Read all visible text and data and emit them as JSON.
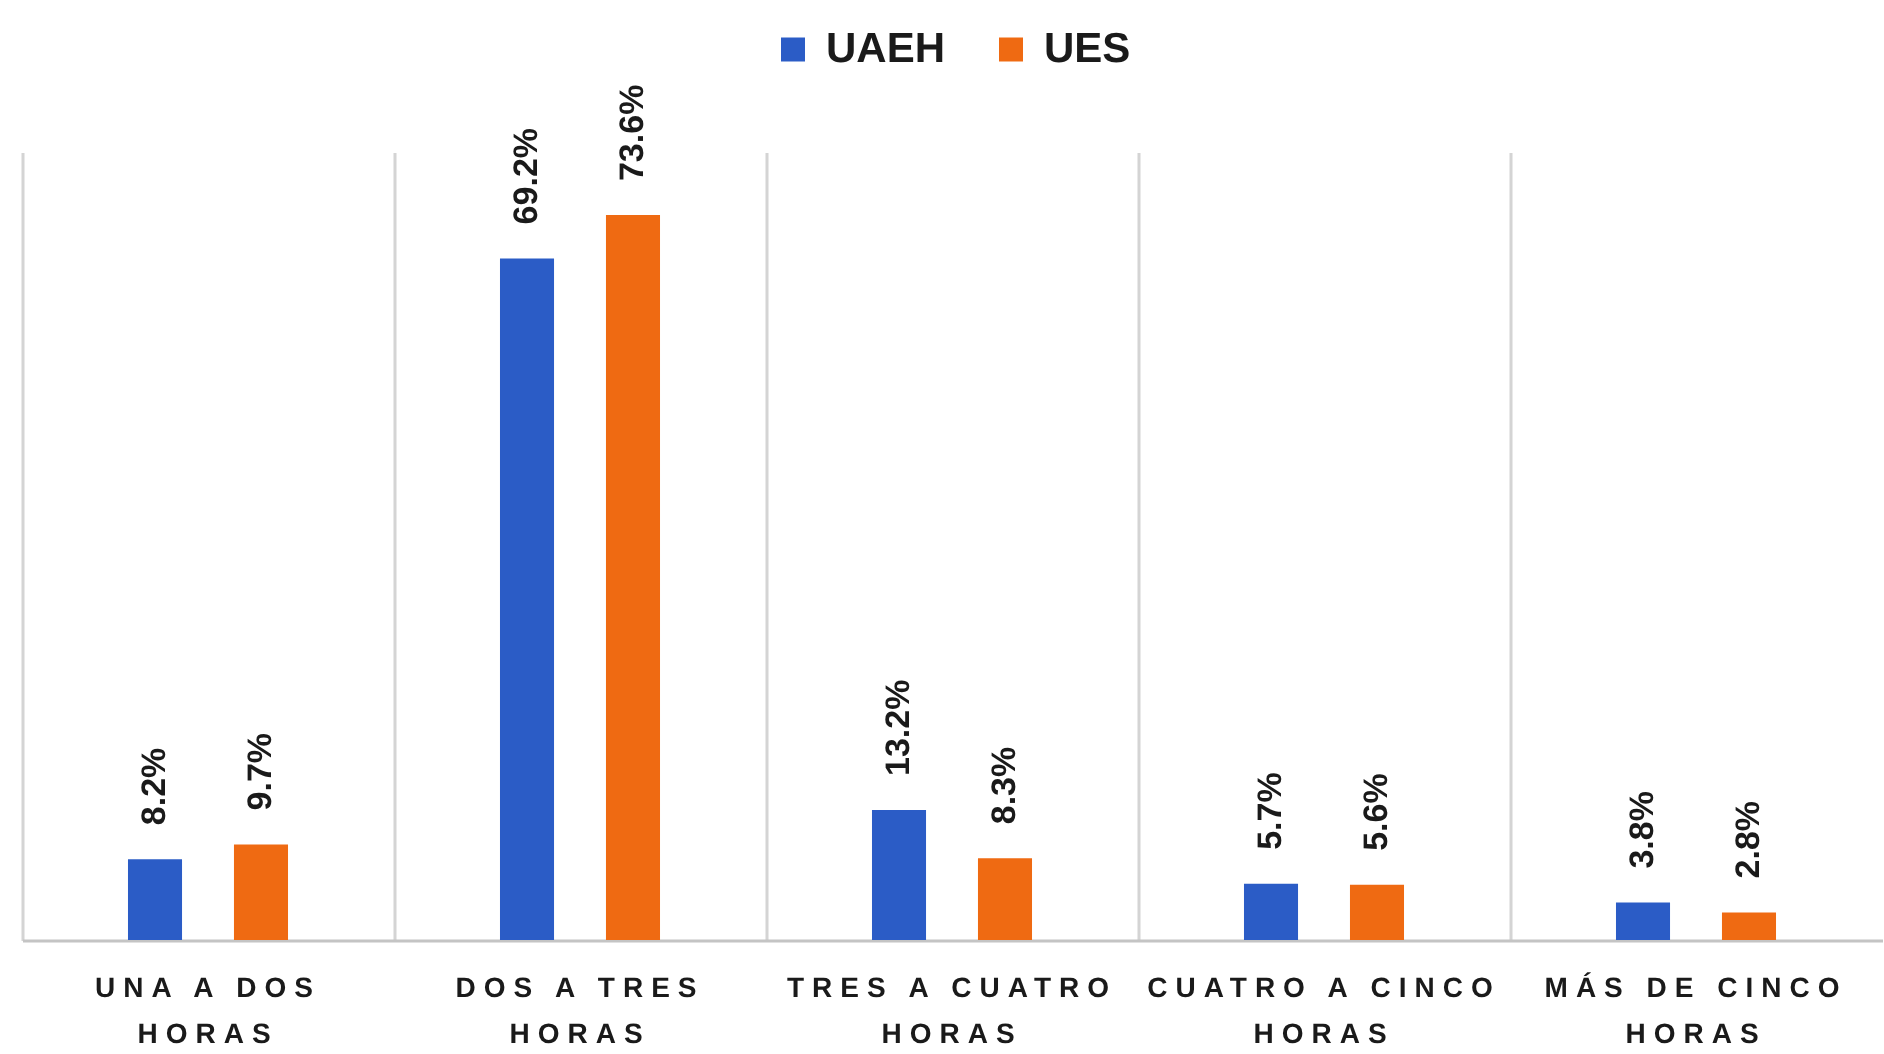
{
  "chart_data": {
    "type": "bar",
    "categories": [
      "UNA A DOS HORAS",
      "DOS A TRES HORAS",
      "TRES A CUATRO HORAS",
      "CUATRO A CINCO HORAS",
      "MÁS DE CINCO HORAS"
    ],
    "series": [
      {
        "name": "UAEH",
        "color": "#2b5cc6",
        "values": [
          8.2,
          69.2,
          13.2,
          5.7,
          3.8
        ],
        "value_labels": [
          "8.2%",
          "69.2%",
          "13.2%",
          "5.7%",
          "3.8%"
        ]
      },
      {
        "name": "UES",
        "color": "#ef6a12",
        "values": [
          9.7,
          73.6,
          8.3,
          5.6,
          2.8
        ],
        "value_labels": [
          "9.7%",
          "73.6%",
          "8.3%",
          "5.6%",
          "2.8%"
        ]
      }
    ],
    "ylim": [
      0,
      80
    ],
    "grid": "x",
    "legend": "top",
    "tick_labels": "x"
  }
}
